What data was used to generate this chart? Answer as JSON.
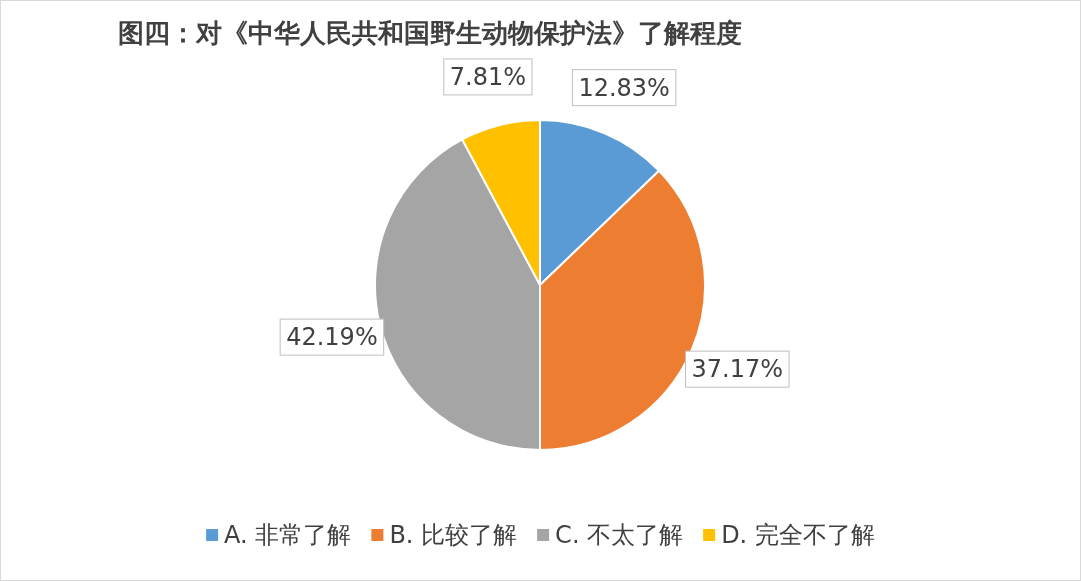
{
  "chart_data": {
    "type": "pie",
    "title": "图四：对《中华人民共和国野生动物保护法》了解程度",
    "categories": [
      "A. 非常了解",
      "B. 比较了解",
      "C. 不太了解",
      "D. 完全不了解"
    ],
    "values": [
      12.83,
      37.17,
      42.19,
      7.81
    ],
    "colors": [
      "#5b9bd5",
      "#ed7d31",
      "#a5a5a5",
      "#ffc000"
    ],
    "value_labels": [
      "12.83%",
      "37.17%",
      "42.19%",
      "7.81%"
    ],
    "legend": "bottom"
  }
}
